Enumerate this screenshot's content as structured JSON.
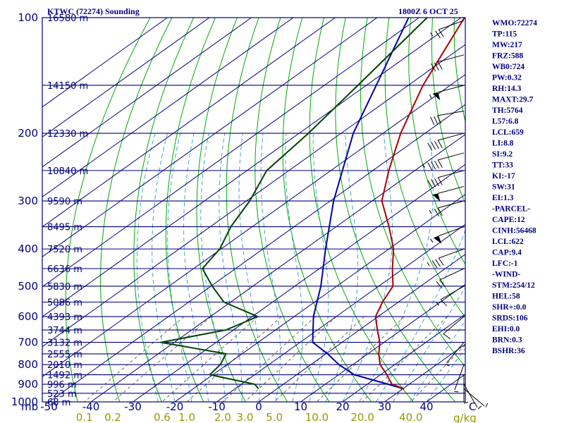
{
  "header": {
    "title": "KTWC (72274) Sounding",
    "time": "1800Z  6 OCT 25"
  },
  "axes": {
    "pressure_unit": "mb",
    "temp_unit": "C",
    "mix_unit": "g/kg"
  },
  "side_panel": [
    "WMO:72274",
    "TP:115",
    "MW:217",
    "FRZ:588",
    "WB0:724",
    "PW:0.32",
    "RH:14.3",
    "MAXT:29.7",
    "TH:5764",
    "L57:6.8",
    "LCL:659",
    "LI:8.8",
    "SI:9.2",
    "TT:33",
    "KI:-17",
    "SW:31",
    "EI:1.3",
    "-PARCEL-",
    "CAPE:12",
    "CINH:56468",
    "LCL:622",
    "CAP:9.4",
    "LFC:-1",
    "-WIND-",
    "STM:254/12",
    "HEL:58",
    "SHR+:0.0",
    "SRDS:106",
    "EHI:0.0",
    "BRN:0.3",
    "BSHR:36"
  ],
  "colors": {
    "navy": "#000080",
    "dry_adiabat": "#00aa00",
    "moist_adiabat": "#3399cc",
    "mixing_ratio": "#555555",
    "mix_label": "#999900",
    "temperature": "#aa0000",
    "dewpoint": "#004400",
    "parcel": "#0000aa"
  },
  "chart_data": {
    "type": "skew-t",
    "title": "KTWC (72274) Sounding",
    "time": "1800Z  6 OCT 25",
    "pressure_levels": [
      {
        "p": 100,
        "label": "100",
        "height": "16580 m"
      },
      {
        "p": 150,
        "label": "",
        "height": "14150 m"
      },
      {
        "p": 200,
        "label": "200",
        "height": "12330 m"
      },
      {
        "p": 250,
        "label": "",
        "height": "10840 m"
      },
      {
        "p": 300,
        "label": "300",
        "height": "9590 m"
      },
      {
        "p": 350,
        "label": "",
        "height": "8495 m"
      },
      {
        "p": 400,
        "label": "400",
        "height": "7520 m"
      },
      {
        "p": 450,
        "label": "",
        "height": "6636 m"
      },
      {
        "p": 500,
        "label": "500",
        "height": "5830 m"
      },
      {
        "p": 550,
        "label": "",
        "height": "5086 m"
      },
      {
        "p": 600,
        "label": "600",
        "height": "4393 m"
      },
      {
        "p": 650,
        "label": "",
        "height": "3744 m"
      },
      {
        "p": 700,
        "label": "700",
        "height": "3132 m"
      },
      {
        "p": 750,
        "label": "",
        "height": "2555 m"
      },
      {
        "p": 800,
        "label": "800",
        "height": "2010 m"
      },
      {
        "p": 850,
        "label": "",
        "height": "1492 m"
      },
      {
        "p": 900,
        "label": "900",
        "height": "996 m"
      },
      {
        "p": 950,
        "label": "",
        "height": "523 m"
      },
      {
        "p": 1000,
        "label": "1000",
        "height": "68 m"
      }
    ],
    "temperature_ticks": [
      -50,
      -40,
      -30,
      -20,
      -10,
      0,
      10,
      20,
      30,
      40
    ],
    "mixing_ratio_labels": [
      {
        "w": 0.1,
        "label": "0.1"
      },
      {
        "w": 0.2,
        "label": "0.2"
      },
      {
        "w": 0.6,
        "label": "0.6"
      },
      {
        "w": 1.0,
        "label": "1.0"
      },
      {
        "w": 2.0,
        "label": "2.0"
      },
      {
        "w": 3.0,
        "label": "3.0"
      },
      {
        "w": 5.0,
        "label": "5.0"
      },
      {
        "w": 10.0,
        "label": "10.0"
      },
      {
        "w": 20.0,
        "label": "20.0"
      },
      {
        "w": 40.0,
        "label": "40.0"
      }
    ],
    "temperature": [
      {
        "p": 925,
        "t": 30.3
      },
      {
        "p": 900,
        "t": 25.9
      },
      {
        "p": 850,
        "t": 21.5
      },
      {
        "p": 800,
        "t": 16.5
      },
      {
        "p": 750,
        "t": 12.6
      },
      {
        "p": 700,
        "t": 9.0
      },
      {
        "p": 650,
        "t": 4.3
      },
      {
        "p": 600,
        "t": -0.6
      },
      {
        "p": 550,
        "t": -3.8
      },
      {
        "p": 500,
        "t": -6.6
      },
      {
        "p": 450,
        "t": -12.6
      },
      {
        "p": 400,
        "t": -18.9
      },
      {
        "p": 350,
        "t": -27.4
      },
      {
        "p": 300,
        "t": -37.7
      },
      {
        "p": 250,
        "t": -46.2
      },
      {
        "p": 200,
        "t": -55.8
      },
      {
        "p": 150,
        "t": -66.5
      },
      {
        "p": 100,
        "t": -79.2
      }
    ],
    "dewpoint": [
      {
        "p": 925,
        "t": -4.4
      },
      {
        "p": 900,
        "t": -6.8
      },
      {
        "p": 850,
        "t": -20.7
      },
      {
        "p": 800,
        "t": -21.6
      },
      {
        "p": 750,
        "t": -23.8
      },
      {
        "p": 700,
        "t": -43.2
      },
      {
        "p": 650,
        "t": -31.8
      },
      {
        "p": 600,
        "t": -28.7
      },
      {
        "p": 550,
        "t": -41.6
      },
      {
        "p": 500,
        "t": -49.7
      },
      {
        "p": 450,
        "t": -57.9
      },
      {
        "p": 400,
        "t": -60.3
      },
      {
        "p": 350,
        "t": -65.1
      },
      {
        "p": 300,
        "t": -69.2
      },
      {
        "p": 250,
        "t": -75.3
      },
      {
        "p": 200,
        "t": -77.8
      },
      {
        "p": 150,
        "t": -82.0
      },
      {
        "p": 100,
        "t": -88.1
      }
    ],
    "parcel": [
      {
        "p": 925,
        "t": 30.3
      },
      {
        "p": 850,
        "t": 13.7
      },
      {
        "p": 800,
        "t": 6.7
      },
      {
        "p": 750,
        "t": 0.4
      },
      {
        "p": 700,
        "t": -7.0
      },
      {
        "p": 600,
        "t": -15.4
      },
      {
        "p": 500,
        "t": -23.8
      },
      {
        "p": 400,
        "t": -35.1
      },
      {
        "p": 300,
        "t": -49.2
      },
      {
        "p": 200,
        "t": -67.1
      },
      {
        "p": 100,
        "t": -92.5
      }
    ],
    "winds": [
      {
        "p": 100,
        "dir": 250,
        "spd": 25
      },
      {
        "p": 125,
        "dir": 255,
        "spd": 30
      },
      {
        "p": 150,
        "dir": 255,
        "spd": 55
      },
      {
        "p": 175,
        "dir": 260,
        "spd": 30
      },
      {
        "p": 200,
        "dir": 255,
        "spd": 40
      },
      {
        "p": 225,
        "dir": 255,
        "spd": 45
      },
      {
        "p": 250,
        "dir": 255,
        "spd": 40
      },
      {
        "p": 275,
        "dir": 255,
        "spd": 50
      },
      {
        "p": 300,
        "dir": 255,
        "spd": 25
      },
      {
        "p": 350,
        "dir": 250,
        "spd": 55
      },
      {
        "p": 400,
        "dir": 250,
        "spd": 35
      },
      {
        "p": 450,
        "dir": 245,
        "spd": 20
      },
      {
        "p": 500,
        "dir": 240,
        "spd": 15
      },
      {
        "p": 600,
        "dir": 230,
        "spd": 10
      },
      {
        "p": 700,
        "dir": 220,
        "spd": 5
      },
      {
        "p": 800,
        "dir": 200,
        "spd": 5
      },
      {
        "p": 850,
        "dir": 180,
        "spd": 5
      },
      {
        "p": 900,
        "dir": 150,
        "spd": 5
      },
      {
        "p": 925,
        "dir": 130,
        "spd": 5
      }
    ]
  }
}
